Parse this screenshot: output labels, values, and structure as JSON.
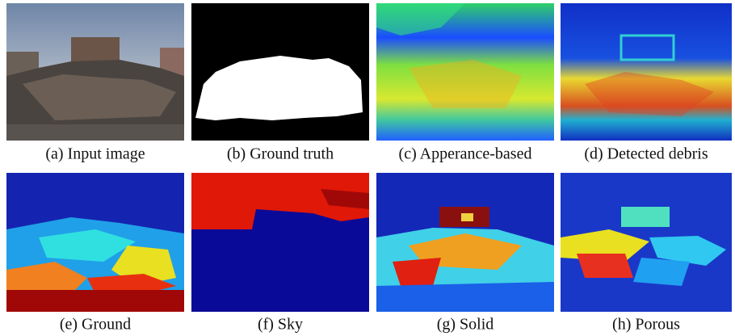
{
  "figure": {
    "panels": [
      {
        "caption": "(a) Input image"
      },
      {
        "caption": "(b) Ground truth"
      },
      {
        "caption": "(c) Apperance-based"
      },
      {
        "caption": "(d) Detected debris"
      },
      {
        "caption": "(e) Ground"
      },
      {
        "caption": "(f) Sky"
      },
      {
        "caption": "(g) Solid"
      },
      {
        "caption": "(h) Porous"
      }
    ]
  }
}
